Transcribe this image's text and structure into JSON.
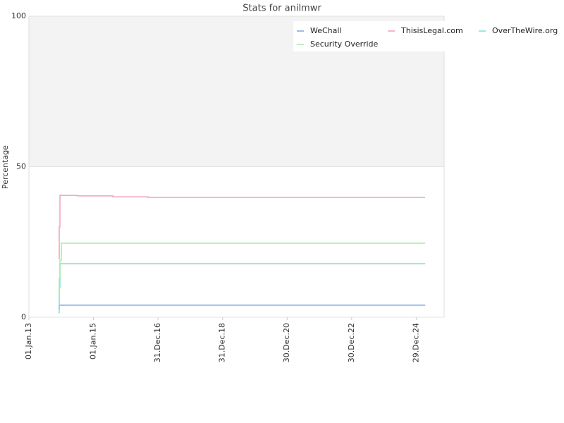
{
  "chart_data": {
    "type": "line",
    "title": "Stats for anilmwr",
    "y_label": "Percentage",
    "step": true,
    "grid": true,
    "legend": "top-right",
    "x": [
      "2013-12-02",
      "2013-12-10",
      "2013-12-18",
      "2014-01-03",
      "2014-07-05",
      "2015-08-08",
      "2016-09-10",
      "2025-04-10"
    ],
    "xlim": [
      "2013-01-01",
      "2025-11-10"
    ],
    "xticks": [
      {
        "value": "2013-01-01",
        "label": "01.Jan.13"
      },
      {
        "value": "2015-01-01",
        "label": "01.Jan.15"
      },
      {
        "value": "2016-12-31",
        "label": "31.Dec.16"
      },
      {
        "value": "2018-12-31",
        "label": "31.Dec.18"
      },
      {
        "value": "2020-12-30",
        "label": "30.Dec.20"
      },
      {
        "value": "2022-12-30",
        "label": "30.Dec.22"
      },
      {
        "value": "2024-12-29",
        "label": "29.Dec.24"
      }
    ],
    "ylim": [
      0,
      100
    ],
    "yticks": [
      0,
      50,
      100
    ],
    "series": [
      {
        "name": "WeChall",
        "color": "#7aa6e6",
        "values": [
          3,
          4,
          4,
          4,
          4,
          4,
          4,
          4
        ]
      },
      {
        "name": "ThisisLegal.com",
        "color": "#f29ec0",
        "values": [
          19.5,
          30,
          40.5,
          40.5,
          40.3,
          40,
          39.8,
          39.8
        ]
      },
      {
        "name": "OverTheWire.org",
        "color": "#7fe0d6",
        "values": [
          1.5,
          10,
          17.8,
          17.8,
          17.8,
          17.8,
          17.8,
          17.8
        ]
      },
      {
        "name": "Security Override",
        "color": "#a6ec9e",
        "values": [
          7,
          13,
          19,
          24.6,
          24.6,
          24.6,
          24.6,
          24.6
        ]
      }
    ]
  }
}
